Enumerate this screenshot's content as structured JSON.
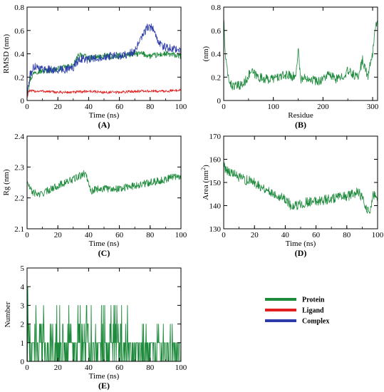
{
  "colors": {
    "protein": "#1e8a3c",
    "ligand": "#e02020",
    "complex": "#2b3aa8"
  },
  "legend": [
    {
      "label": "Protein",
      "color": "#1e8a3c"
    },
    {
      "label": "Ligand",
      "color": "#e02020"
    },
    {
      "label": "Complex",
      "color": "#2b3aa8"
    }
  ],
  "chart_data": [
    {
      "id": "A",
      "type": "line",
      "panel_label": "(A)",
      "xlabel": "Time (ns)",
      "ylabel": "RMSD (nm)",
      "xlim": [
        0,
        100
      ],
      "ylim": [
        0,
        0.8
      ],
      "xticks": [
        0,
        20,
        40,
        60,
        80,
        100
      ],
      "yticks": [
        0,
        0.2,
        0.4,
        0.6,
        0.8
      ],
      "ytick_labels": [
        "0",
        "0.2",
        "0.4",
        "0.6",
        "0.8"
      ],
      "series": [
        {
          "name": "Protein",
          "color": "#1e8a3c",
          "noise": 0.025,
          "x": [
            0,
            2,
            5,
            10,
            20,
            30,
            34,
            40,
            50,
            60,
            70,
            75,
            80,
            90,
            100
          ],
          "y": [
            0.05,
            0.18,
            0.25,
            0.25,
            0.27,
            0.3,
            0.4,
            0.36,
            0.38,
            0.38,
            0.4,
            0.4,
            0.38,
            0.4,
            0.38
          ]
        },
        {
          "name": "Ligand",
          "color": "#e02020",
          "noise": 0.012,
          "x": [
            0,
            1,
            10,
            20,
            30,
            40,
            50,
            60,
            70,
            80,
            90,
            100
          ],
          "y": [
            0.02,
            0.08,
            0.08,
            0.07,
            0.07,
            0.08,
            0.07,
            0.07,
            0.08,
            0.08,
            0.08,
            0.09
          ]
        },
        {
          "name": "Complex",
          "color": "#2b3aa8",
          "noise": 0.035,
          "x": [
            0,
            2,
            5,
            10,
            20,
            30,
            34,
            40,
            50,
            60,
            66,
            70,
            75,
            78,
            82,
            85,
            90,
            95,
            100
          ],
          "y": [
            0.05,
            0.22,
            0.3,
            0.27,
            0.26,
            0.28,
            0.36,
            0.35,
            0.38,
            0.38,
            0.4,
            0.42,
            0.55,
            0.63,
            0.62,
            0.5,
            0.45,
            0.45,
            0.42
          ]
        }
      ]
    },
    {
      "id": "B",
      "type": "line",
      "panel_label": "(B)",
      "xlabel": "Residue",
      "ylabel": "(nm)",
      "xlim": [
        0,
        310
      ],
      "ylim": [
        0,
        0.8
      ],
      "xticks": [
        0,
        100,
        200,
        300
      ],
      "yticks": [
        0,
        0.2,
        0.4,
        0.6,
        0.8
      ],
      "ytick_labels": [
        "0",
        "0.2",
        "0.4",
        "0.6",
        "0.8"
      ],
      "series": [
        {
          "name": "Protein",
          "color": "#1e8a3c",
          "noise": 0.04,
          "x": [
            0,
            3,
            8,
            15,
            25,
            40,
            55,
            70,
            90,
            110,
            130,
            145,
            150,
            155,
            170,
            190,
            210,
            230,
            250,
            270,
            280,
            290,
            300,
            306
          ],
          "y": [
            0.72,
            0.4,
            0.22,
            0.13,
            0.12,
            0.14,
            0.25,
            0.2,
            0.18,
            0.2,
            0.22,
            0.2,
            0.45,
            0.18,
            0.2,
            0.16,
            0.22,
            0.18,
            0.25,
            0.2,
            0.35,
            0.2,
            0.4,
            0.66
          ]
        }
      ]
    },
    {
      "id": "C",
      "type": "line",
      "panel_label": "(C)",
      "xlabel": "Time (ns)",
      "ylabel": "Rg (nm)",
      "xlim": [
        0,
        100
      ],
      "ylim": [
        2.1,
        2.4
      ],
      "xticks": [
        0,
        20,
        40,
        60,
        80,
        100
      ],
      "yticks": [
        2.1,
        2.2,
        2.3,
        2.4
      ],
      "ytick_labels": [
        "2.1",
        "2.2",
        "2.3",
        "2.4"
      ],
      "series": [
        {
          "name": "Protein",
          "color": "#1e8a3c",
          "noise": 0.012,
          "x": [
            0,
            3,
            8,
            12,
            20,
            30,
            38,
            42,
            45,
            50,
            60,
            70,
            80,
            90,
            95,
            100
          ],
          "y": [
            2.25,
            2.22,
            2.21,
            2.22,
            2.24,
            2.26,
            2.28,
            2.22,
            2.23,
            2.23,
            2.23,
            2.24,
            2.25,
            2.26,
            2.27,
            2.27
          ]
        }
      ]
    },
    {
      "id": "D",
      "type": "line",
      "panel_label": "(D)",
      "xlabel": "Time (ns)",
      "ylabel": "Area (nm",
      "ylabel_sup": "2",
      "ylabel_tail": ")",
      "xlim": [
        0,
        100
      ],
      "ylim": [
        130,
        170
      ],
      "xticks": [
        0,
        20,
        40,
        60,
        80,
        100
      ],
      "yticks": [
        130,
        140,
        150,
        160,
        170
      ],
      "ytick_labels": [
        "130",
        "140",
        "150",
        "160",
        "170"
      ],
      "series": [
        {
          "name": "Protein",
          "color": "#1e8a3c",
          "noise": 2.2,
          "x": [
            0,
            3,
            10,
            20,
            30,
            40,
            45,
            50,
            60,
            70,
            80,
            88,
            92,
            95,
            97,
            100
          ],
          "y": [
            157,
            155,
            152,
            150,
            146,
            143,
            139,
            141,
            142,
            143,
            144,
            146,
            140,
            137,
            145,
            142
          ]
        }
      ]
    },
    {
      "id": "E",
      "type": "line",
      "panel_label": "(E)",
      "xlabel": "Time (ns)",
      "ylabel": "Number",
      "xlim": [
        0,
        100
      ],
      "ylim": [
        0,
        5
      ],
      "xticks": [
        0,
        20,
        40,
        60,
        80,
        100
      ],
      "yticks": [
        0,
        1,
        2,
        3,
        4,
        5
      ],
      "ytick_labels": [
        "0",
        "1",
        "2",
        "3",
        "4",
        "5"
      ],
      "series": [
        {
          "name": "Protein",
          "color": "#1e8a3c",
          "discrete": true,
          "x": [
            0,
            1,
            2,
            5,
            10,
            15,
            20,
            25,
            30,
            35,
            40,
            45,
            50,
            55,
            60,
            65,
            68,
            70,
            75,
            80,
            85,
            90,
            95,
            100
          ],
          "y": [
            1,
            4,
            2,
            1,
            3,
            2,
            1,
            2,
            3,
            2,
            1,
            2,
            3,
            2,
            3,
            3,
            1,
            1,
            2,
            1,
            2,
            1,
            1,
            1
          ]
        }
      ]
    }
  ]
}
